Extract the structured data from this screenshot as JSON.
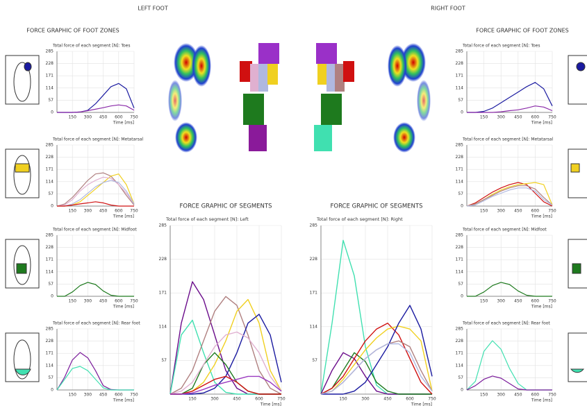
{
  "labels": {
    "left_foot": "LEFT FOOT",
    "right_foot": "RIGHT FOOT",
    "left_zones": "FORCE GRAPHIC OF FOOT ZONES",
    "right_zones": "FORCE GRAPHIC OF FOOT ZONES"
  },
  "chart_data": [
    {
      "type": "line",
      "subtitle": "Total force of each segment [N]: Toes",
      "x_label": "Time [ms]",
      "x": [
        0,
        75,
        150,
        225,
        300,
        375,
        450,
        525,
        600,
        675,
        750
      ],
      "xlim": [
        0,
        750
      ],
      "xticks": [
        150,
        300,
        450,
        600,
        750
      ],
      "ylim": [
        0,
        285
      ],
      "yticks": [
        0,
        57,
        114,
        171,
        228,
        285
      ],
      "grid": true,
      "series": [
        {
          "color": "#1a1aa0",
          "values": [
            0,
            0,
            0,
            2,
            10,
            40,
            80,
            120,
            135,
            110,
            20
          ]
        },
        {
          "color": "#8a2aa8",
          "values": [
            0,
            0,
            0,
            2,
            8,
            15,
            22,
            30,
            35,
            30,
            10
          ]
        }
      ]
    },
    {
      "type": "line",
      "subtitle": "Total force of each segment [N]: Metatarsal",
      "x_label": "Time [ms]",
      "x": [
        0,
        75,
        150,
        225,
        300,
        375,
        450,
        525,
        600,
        675,
        750
      ],
      "xlim": [
        0,
        750
      ],
      "xticks": [
        150,
        300,
        450,
        600,
        750
      ],
      "ylim": [
        0,
        285
      ],
      "yticks": [
        0,
        57,
        114,
        171,
        228,
        285
      ],
      "grid": true,
      "series": [
        {
          "color": "#b08080",
          "values": [
            0,
            10,
            40,
            80,
            120,
            150,
            155,
            140,
            100,
            50,
            5
          ]
        },
        {
          "color": "#f0d020",
          "values": [
            0,
            0,
            5,
            20,
            50,
            80,
            110,
            140,
            150,
            100,
            10
          ]
        },
        {
          "color": "#e0b0d0",
          "values": [
            0,
            5,
            30,
            70,
            100,
            120,
            135,
            130,
            100,
            60,
            10
          ]
        },
        {
          "color": "#b0b8e0",
          "values": [
            0,
            0,
            10,
            30,
            60,
            90,
            110,
            120,
            110,
            70,
            10
          ]
        },
        {
          "color": "#d01010",
          "values": [
            0,
            0,
            5,
            10,
            15,
            20,
            15,
            5,
            0,
            0,
            0
          ]
        }
      ]
    },
    {
      "type": "line",
      "subtitle": "Total force of each segment [N]: Midfoot",
      "x_label": "Time [ms]",
      "x": [
        0,
        75,
        150,
        225,
        300,
        375,
        450,
        525,
        600,
        675,
        750
      ],
      "xlim": [
        0,
        750
      ],
      "xticks": [
        150,
        300,
        450,
        600,
        750
      ],
      "ylim": [
        0,
        285
      ],
      "yticks": [
        0,
        57,
        114,
        171,
        228,
        285
      ],
      "grid": true,
      "series": [
        {
          "color": "#1e7a1e",
          "values": [
            0,
            0,
            20,
            50,
            65,
            55,
            25,
            5,
            0,
            0,
            0
          ]
        }
      ]
    },
    {
      "type": "line",
      "subtitle": "Total force of each segment [N]: Rear foot",
      "x_label": "Time [ms]",
      "x": [
        0,
        75,
        150,
        225,
        300,
        375,
        450,
        525,
        600,
        675,
        750
      ],
      "xlim": [
        0,
        750
      ],
      "xticks": [
        150,
        300,
        450,
        600,
        750
      ],
      "ylim": [
        0,
        285
      ],
      "yticks": [
        0,
        57,
        114,
        171,
        228,
        285
      ],
      "grid": true,
      "series": [
        {
          "color": "#7a1a9a",
          "values": [
            0,
            60,
            140,
            175,
            150,
            90,
            20,
            2,
            0,
            0,
            0
          ]
        },
        {
          "color": "#40e0b0",
          "values": [
            0,
            50,
            100,
            110,
            90,
            50,
            10,
            0,
            0,
            0,
            0
          ]
        }
      ]
    },
    {
      "type": "line",
      "subtitle": "Total force of each segment [N]: Toes",
      "x_label": "Time [ms]",
      "x": [
        0,
        75,
        150,
        225,
        300,
        375,
        450,
        525,
        600,
        675,
        750
      ],
      "xlim": [
        0,
        750
      ],
      "xticks": [
        150,
        300,
        450,
        600,
        750
      ],
      "ylim": [
        0,
        285
      ],
      "yticks": [
        0,
        57,
        114,
        171,
        228,
        285
      ],
      "grid": true,
      "series": [
        {
          "color": "#1a1aa0",
          "values": [
            0,
            0,
            5,
            20,
            45,
            70,
            95,
            120,
            140,
            110,
            30
          ]
        },
        {
          "color": "#8a2aa8",
          "values": [
            0,
            0,
            0,
            0,
            3,
            8,
            12,
            20,
            30,
            25,
            8
          ]
        }
      ]
    },
    {
      "type": "line",
      "subtitle": "Total force of each segment [N]: Metatarsal",
      "x_label": "Time [ms]",
      "x": [
        0,
        75,
        150,
        225,
        300,
        375,
        450,
        525,
        600,
        675,
        750
      ],
      "xlim": [
        0,
        750
      ],
      "xticks": [
        150,
        300,
        450,
        600,
        750
      ],
      "ylim": [
        0,
        285
      ],
      "yticks": [
        0,
        57,
        114,
        171,
        228,
        285
      ],
      "grid": true,
      "series": [
        {
          "color": "#d01010",
          "values": [
            0,
            15,
            40,
            65,
            85,
            100,
            110,
            100,
            60,
            20,
            0
          ]
        },
        {
          "color": "#f0d020",
          "values": [
            0,
            10,
            30,
            55,
            75,
            90,
            100,
            105,
            110,
            100,
            5
          ]
        },
        {
          "color": "#b08080",
          "values": [
            0,
            10,
            30,
            50,
            70,
            85,
            95,
            95,
            80,
            40,
            5
          ]
        },
        {
          "color": "#b0b8e0",
          "values": [
            0,
            5,
            25,
            45,
            60,
            75,
            85,
            85,
            70,
            30,
            5
          ]
        }
      ]
    },
    {
      "type": "line",
      "subtitle": "Total force of each segment [N]: Midfoot",
      "x_label": "Time [ms]",
      "x": [
        0,
        75,
        150,
        225,
        300,
        375,
        450,
        525,
        600,
        675,
        750
      ],
      "xlim": [
        0,
        750
      ],
      "xticks": [
        150,
        300,
        450,
        600,
        750
      ],
      "ylim": [
        0,
        285
      ],
      "yticks": [
        0,
        57,
        114,
        171,
        228,
        285
      ],
      "grid": true,
      "series": [
        {
          "color": "#1e7a1e",
          "values": [
            0,
            0,
            20,
            50,
            65,
            55,
            25,
            5,
            0,
            0,
            0
          ]
        }
      ]
    },
    {
      "type": "line",
      "subtitle": "Total force of each segment [N]: Rear foot",
      "x_label": "Time [ms]",
      "x": [
        0,
        75,
        150,
        225,
        300,
        375,
        450,
        525,
        600,
        675,
        750
      ],
      "xlim": [
        0,
        750
      ],
      "xticks": [
        150,
        300,
        450,
        600,
        750
      ],
      "ylim": [
        0,
        285
      ],
      "yticks": [
        0,
        57,
        114,
        171,
        228,
        285
      ],
      "grid": true,
      "series": [
        {
          "color": "#40e0b0",
          "values": [
            0,
            40,
            180,
            230,
            190,
            100,
            30,
            0,
            0,
            0,
            0
          ]
        },
        {
          "color": "#7a1a9a",
          "values": [
            0,
            20,
            50,
            65,
            55,
            30,
            5,
            0,
            0,
            0,
            0
          ]
        }
      ]
    },
    {
      "type": "line",
      "title": "FORCE GRAPHIC OF SEGMENTS",
      "subtitle": "Total force of each segment [N]: Left",
      "x_label": "Time [ms]",
      "x": [
        0,
        75,
        150,
        225,
        300,
        375,
        450,
        525,
        600,
        675,
        750
      ],
      "xlim": [
        0,
        750
      ],
      "xticks": [
        150,
        300,
        450,
        600,
        750
      ],
      "ylim": [
        0,
        285
      ],
      "yticks": [
        57,
        114,
        171,
        228,
        285
      ],
      "grid": true,
      "series": [
        {
          "color": "#6a0b8a",
          "values": [
            0,
            120,
            190,
            160,
            100,
            40,
            10,
            0,
            0,
            0,
            0
          ]
        },
        {
          "color": "#40e0b0",
          "values": [
            0,
            100,
            125,
            70,
            20,
            3,
            0,
            0,
            0,
            0,
            0
          ]
        },
        {
          "color": "#b08080",
          "values": [
            0,
            10,
            40,
            90,
            140,
            165,
            150,
            100,
            40,
            10,
            0
          ]
        },
        {
          "color": "#f0d020",
          "values": [
            0,
            0,
            5,
            20,
            50,
            90,
            140,
            160,
            120,
            40,
            5
          ]
        },
        {
          "color": "#1a1aa0",
          "values": [
            0,
            0,
            0,
            2,
            10,
            30,
            70,
            120,
            135,
            100,
            20
          ]
        },
        {
          "color": "#1e7a1e",
          "values": [
            0,
            0,
            10,
            50,
            70,
            50,
            20,
            5,
            0,
            0,
            0
          ]
        },
        {
          "color": "#e0b0d0",
          "values": [
            0,
            5,
            20,
            50,
            80,
            100,
            105,
            95,
            70,
            30,
            5
          ]
        },
        {
          "color": "#d01010",
          "values": [
            0,
            0,
            5,
            15,
            25,
            30,
            20,
            5,
            0,
            0,
            0
          ]
        },
        {
          "color": "#9a3ac0",
          "values": [
            0,
            0,
            2,
            8,
            15,
            20,
            25,
            30,
            30,
            20,
            5
          ]
        }
      ]
    },
    {
      "type": "line",
      "title": "FORCE GRAPHIC OF SEGMENTS",
      "subtitle": "Total force of each segment [N]: Right",
      "x_label": "Time [ms]",
      "x": [
        0,
        75,
        150,
        225,
        300,
        375,
        450,
        525,
        600,
        675,
        750
      ],
      "xlim": [
        0,
        750
      ],
      "xticks": [
        150,
        300,
        450,
        600,
        750
      ],
      "ylim": [
        0,
        285
      ],
      "yticks": [
        57,
        114,
        171,
        228,
        285
      ],
      "grid": true,
      "series": [
        {
          "color": "#40e0b0",
          "values": [
            0,
            120,
            260,
            200,
            80,
            15,
            0,
            0,
            0,
            0,
            0
          ]
        },
        {
          "color": "#6a0b8a",
          "values": [
            0,
            40,
            70,
            60,
            30,
            5,
            0,
            0,
            0,
            0,
            0
          ]
        },
        {
          "color": "#1e7a1e",
          "values": [
            0,
            10,
            40,
            70,
            55,
            20,
            5,
            0,
            0,
            0,
            0
          ]
        },
        {
          "color": "#d01010",
          "values": [
            0,
            10,
            30,
            60,
            90,
            110,
            120,
            100,
            60,
            20,
            0
          ]
        },
        {
          "color": "#f0d020",
          "values": [
            0,
            5,
            25,
            50,
            75,
            95,
            110,
            115,
            110,
            90,
            5
          ]
        },
        {
          "color": "#b08080",
          "values": [
            0,
            5,
            20,
            40,
            60,
            75,
            85,
            90,
            80,
            40,
            5
          ]
        },
        {
          "color": "#1a1aa0",
          "values": [
            0,
            0,
            0,
            5,
            20,
            50,
            80,
            120,
            150,
            110,
            30
          ]
        },
        {
          "color": "#b0b8e0",
          "values": [
            0,
            5,
            20,
            40,
            60,
            75,
            85,
            85,
            70,
            30,
            5
          ]
        }
      ]
    }
  ]
}
